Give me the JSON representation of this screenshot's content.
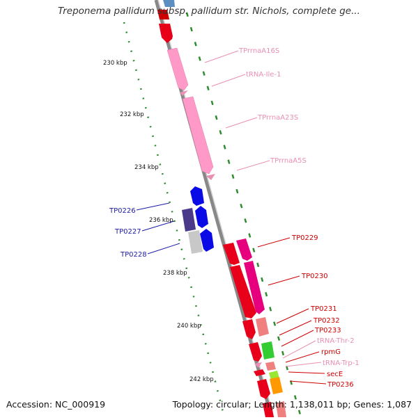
{
  "title": "Treponema pallidum subsp. pallidum str. Nichols, complete ge...",
  "footer": {
    "accession": "Accession: NC_000919",
    "summary": "Topology: circular; Length: 1,138,011 bp; Genes: 1,087"
  },
  "colors": {
    "background": "#ffffff",
    "backbone": "#8c8c8c",
    "tick_dots": "#2e8b2e",
    "forward_label": "#cc0000",
    "reverse_label": "#1a1aa6",
    "rna_label": "#e88fb4",
    "rrna_feature": "#ff99c8",
    "cds_red": "#e8001a",
    "cds_magenta": "#e6007e",
    "cds_blue": "#0a0ae6",
    "cds_purple": "#4b3a8a",
    "cds_gray": "#c8c8c8",
    "cds_salmon": "#f08080",
    "cds_green": "#33cc33",
    "cds_yellowgreen": "#99e633",
    "cds_orange": "#ff9900"
  },
  "ticks": [
    "230 kbp",
    "232 kbp",
    "234 kbp",
    "236 kbp",
    "238 kbp",
    "240 kbp",
    "242 kbp"
  ],
  "labels_rna": [
    "TPrrnaA16S",
    "tRNA-Ile-1",
    "TPrrnaA23S",
    "TPrrnaA5S",
    "tRNA-Thr-2",
    "tRNA-Trp-1"
  ],
  "labels_reverse": [
    "TP0226",
    "TP0227",
    "TP0228"
  ],
  "labels_forward": [
    "TP0229",
    "TP0230",
    "TP0231",
    "TP0232",
    "TP0233",
    "rpmG",
    "secE",
    "TP0236"
  ]
}
